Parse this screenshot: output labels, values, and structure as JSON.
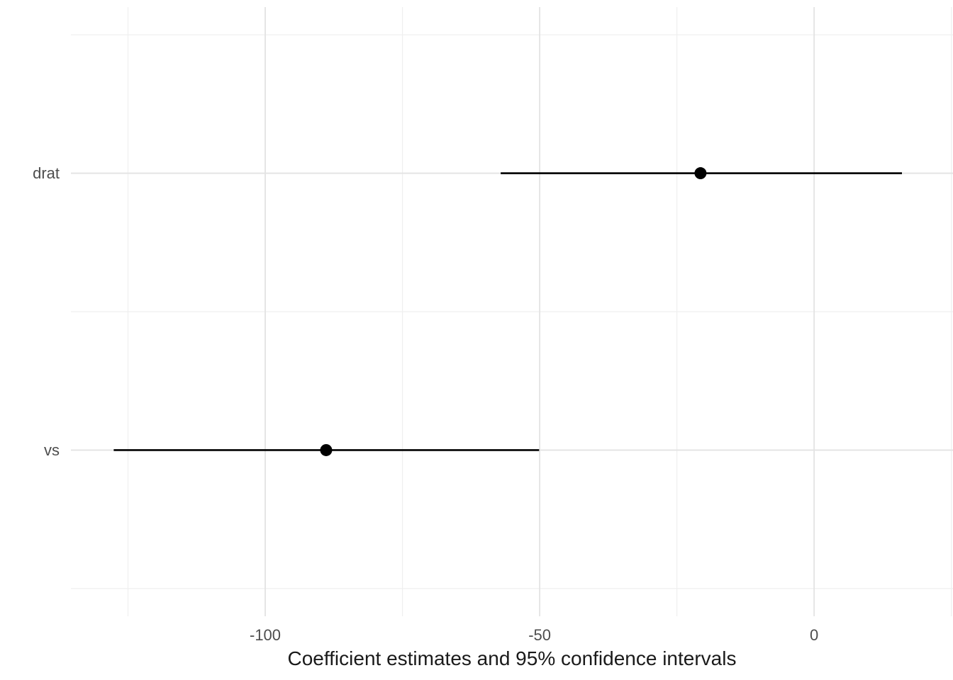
{
  "figure": {
    "background": "#ffffff"
  },
  "chart_data": {
    "type": "pointrange",
    "orientation": "horizontal",
    "title": "",
    "xlabel": "Coefficient estimates and 95% confidence intervals",
    "ylabel": "",
    "terms": [
      {
        "label": "drat",
        "estimate": -20.7,
        "ci_low": -57.1,
        "ci_high": 16.0
      },
      {
        "label": "vs",
        "estimate": -88.9,
        "ci_low": -127.6,
        "ci_high": -50.1
      }
    ],
    "x_major_ticks": [
      -100,
      -50,
      0
    ],
    "x_minor_ticks": [
      -125,
      -75,
      -25,
      25
    ],
    "xlim": [
      -135.4,
      25.3
    ],
    "grid": {
      "major": true,
      "minor": true
    },
    "legend": false,
    "style": {
      "point_color": "#000000",
      "segment_color": "#000000",
      "grid_major_color": "#e3e3e3",
      "grid_minor_color": "#efefef",
      "tick_label_color": "#4d4d4d",
      "axis_title_color": "#1a1a1a",
      "background": "#ffffff"
    }
  }
}
